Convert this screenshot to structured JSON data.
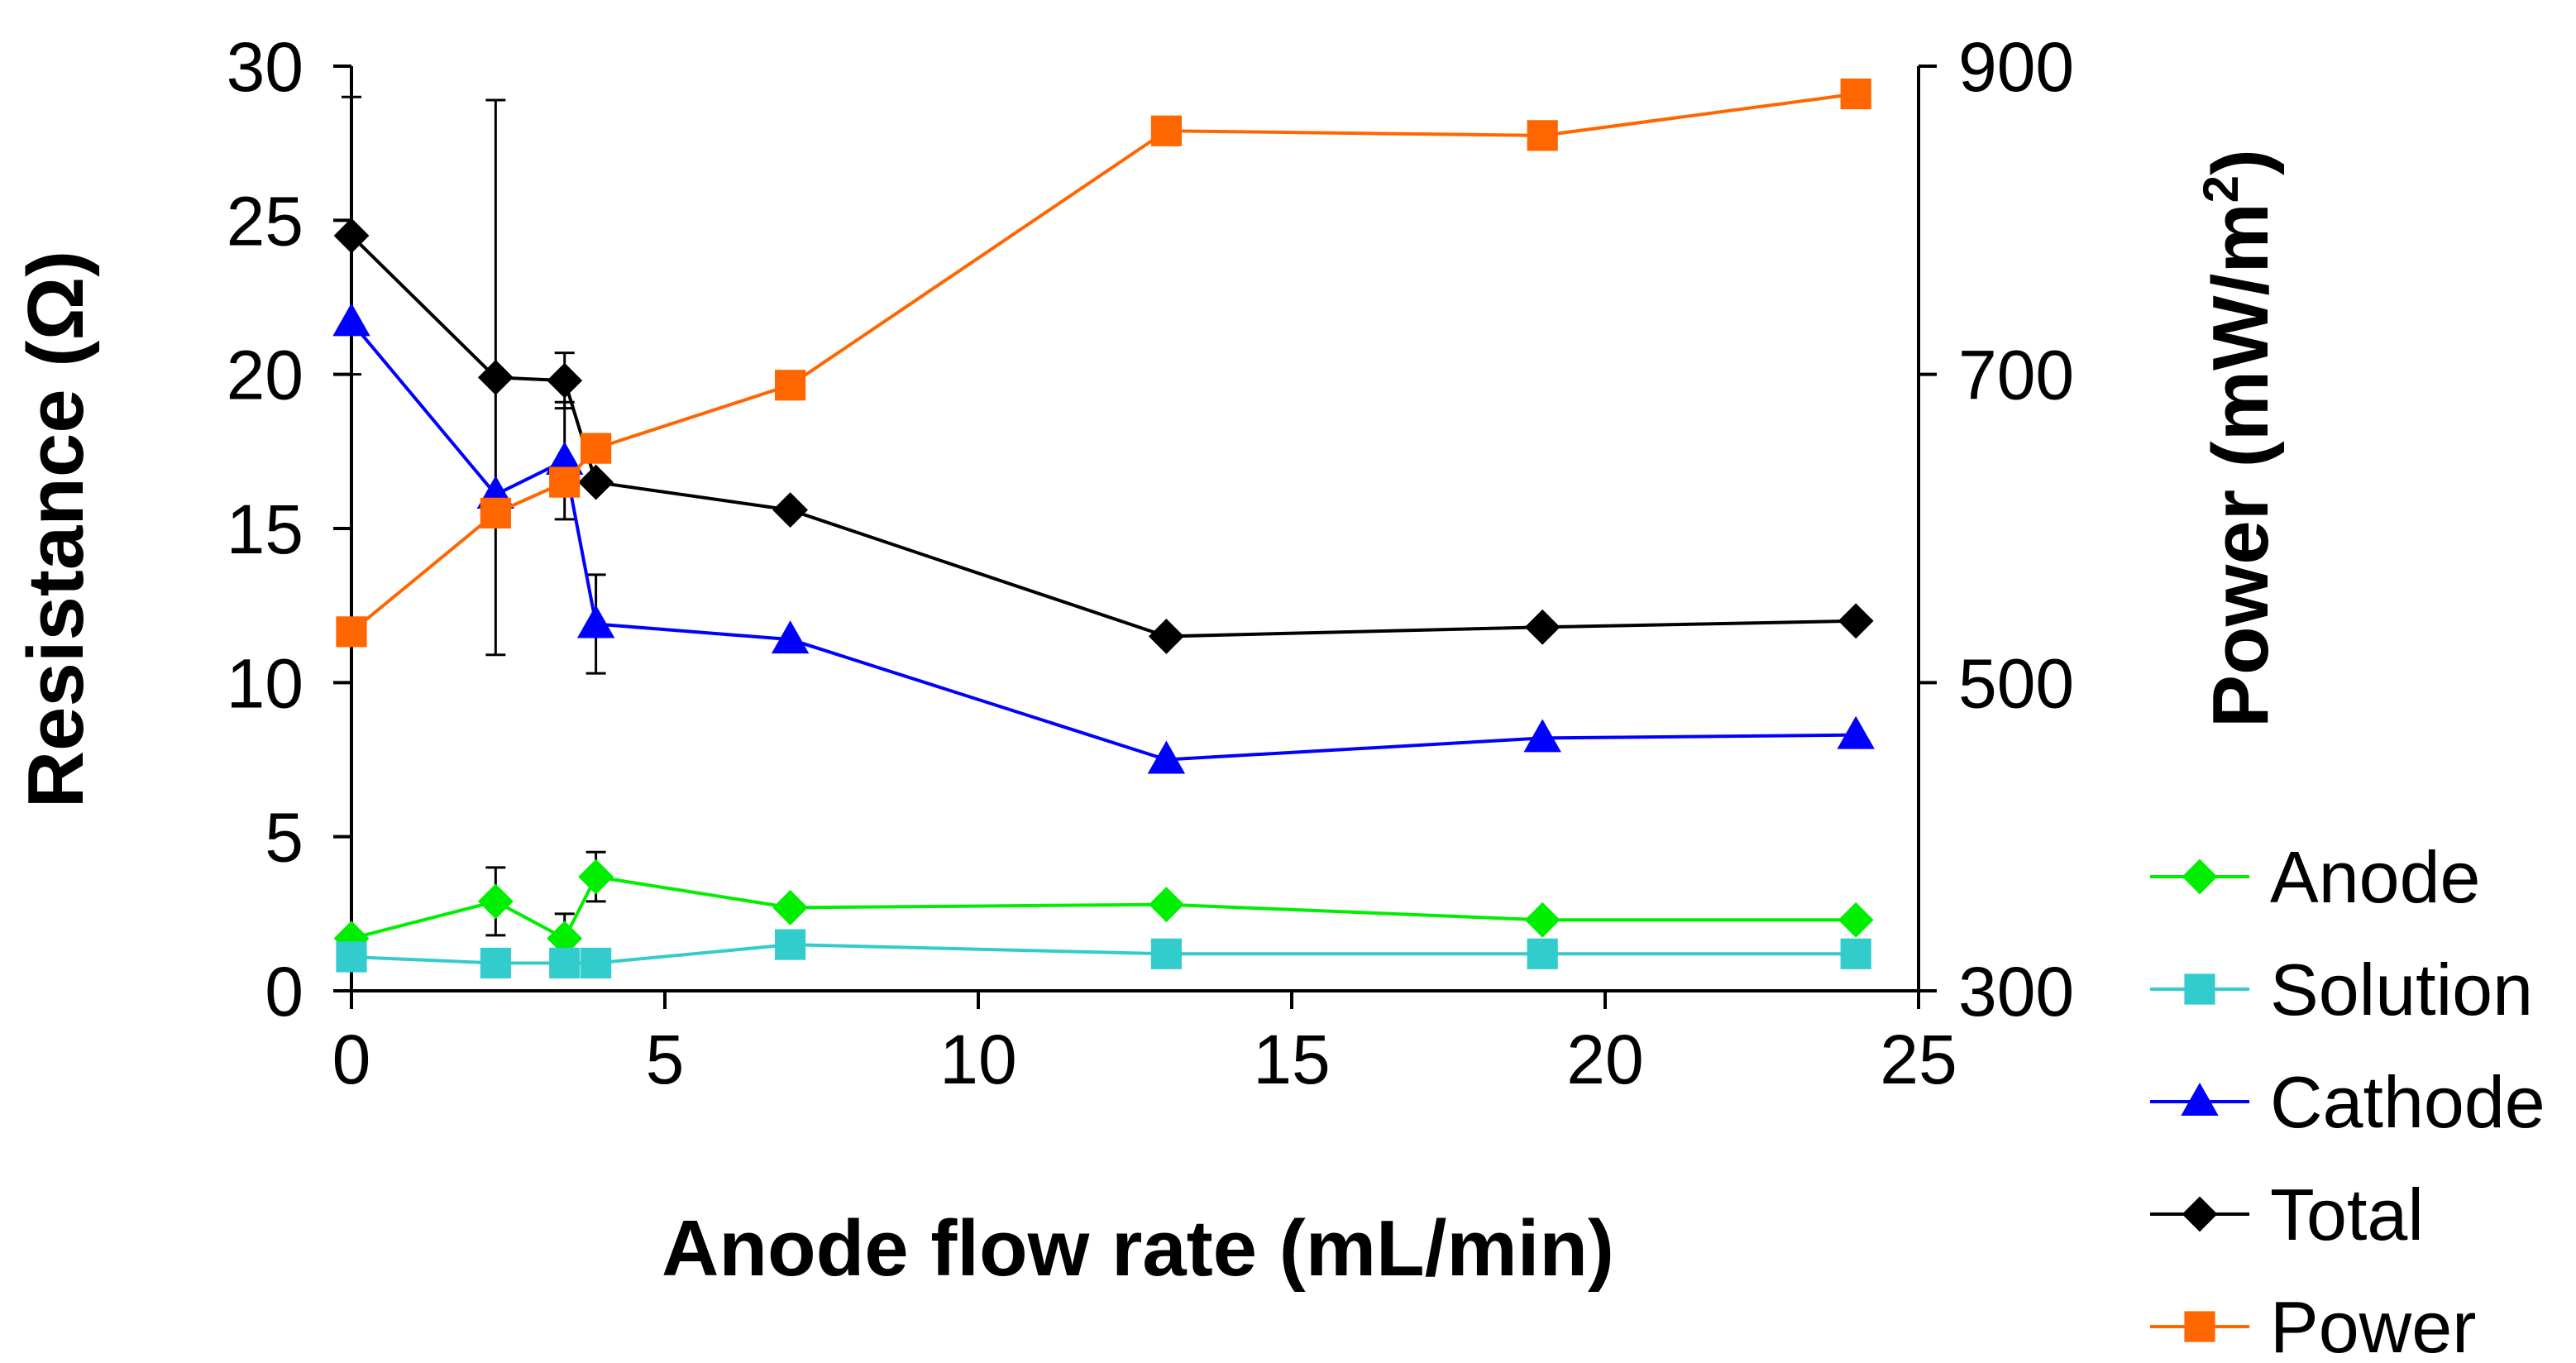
{
  "chart_data": {
    "type": "line",
    "xlabel": "Anode flow rate (mL/min)",
    "ylabel": "Resistance (Ω)",
    "y2label_base": "Power (mW/m",
    "y2label_sup": "2",
    "y2label_end": ")",
    "xlim": [
      0,
      25
    ],
    "ylim": [
      0,
      30
    ],
    "y2lim": [
      300,
      900
    ],
    "xticks": [
      "0",
      "5",
      "10",
      "15",
      "20",
      "25"
    ],
    "yticks": [
      "0",
      "5",
      "10",
      "15",
      "20",
      "25",
      "30"
    ],
    "y2ticks": [
      "300",
      "500",
      "700",
      "900"
    ],
    "legend_position": "bottom-right",
    "series": [
      {
        "name": "Anode",
        "axis": "left",
        "color": "#00ee00",
        "marker": "diamond",
        "x": [
          0,
          2.3,
          3.4,
          3.9,
          7,
          13,
          19,
          24
        ],
        "y": [
          1.7,
          2.9,
          1.7,
          3.7,
          2.7,
          2.8,
          2.3,
          2.3
        ],
        "errors": [
          null,
          1.1,
          0.8,
          0.8,
          null,
          null,
          null,
          null
        ]
      },
      {
        "name": "Solution",
        "axis": "left",
        "color": "#33cccc",
        "marker": "square",
        "x": [
          0,
          2.3,
          3.4,
          3.9,
          7,
          13,
          19,
          24
        ],
        "y": [
          1.1,
          0.9,
          0.9,
          0.9,
          1.5,
          1.2,
          1.2,
          1.2
        ],
        "errors": [
          null,
          null,
          null,
          null,
          null,
          null,
          null,
          null
        ]
      },
      {
        "name": "Cathode",
        "axis": "left",
        "color": "#0000ff",
        "marker": "triangle",
        "x": [
          0,
          2.3,
          3.4,
          3.9,
          7,
          13,
          19,
          24
        ],
        "y": [
          21.7,
          16.1,
          17.2,
          11.9,
          11.4,
          7.5,
          8.2,
          8.3
        ],
        "errors": [
          null,
          null,
          1.9,
          1.6,
          null,
          null,
          null,
          null
        ]
      },
      {
        "name": "Total",
        "axis": "left",
        "color": "#000000",
        "marker": "diamond",
        "x": [
          0,
          2.3,
          3.4,
          3.9,
          7,
          13,
          19,
          24
        ],
        "y": [
          24.5,
          19.9,
          19.8,
          16.5,
          15.6,
          11.5,
          11.8,
          12.0
        ],
        "errors": [
          4.5,
          9.0,
          0.9,
          null,
          null,
          null,
          null,
          null
        ]
      },
      {
        "name": "Power",
        "axis": "right",
        "color": "#ff6600",
        "marker": "square",
        "x": [
          0,
          2.3,
          3.4,
          3.9,
          7,
          13,
          19,
          24
        ],
        "y": [
          533,
          610,
          630,
          652,
          693,
          858,
          855,
          882
        ],
        "errors": [
          null,
          null,
          null,
          null,
          null,
          null,
          null,
          null
        ]
      }
    ]
  }
}
